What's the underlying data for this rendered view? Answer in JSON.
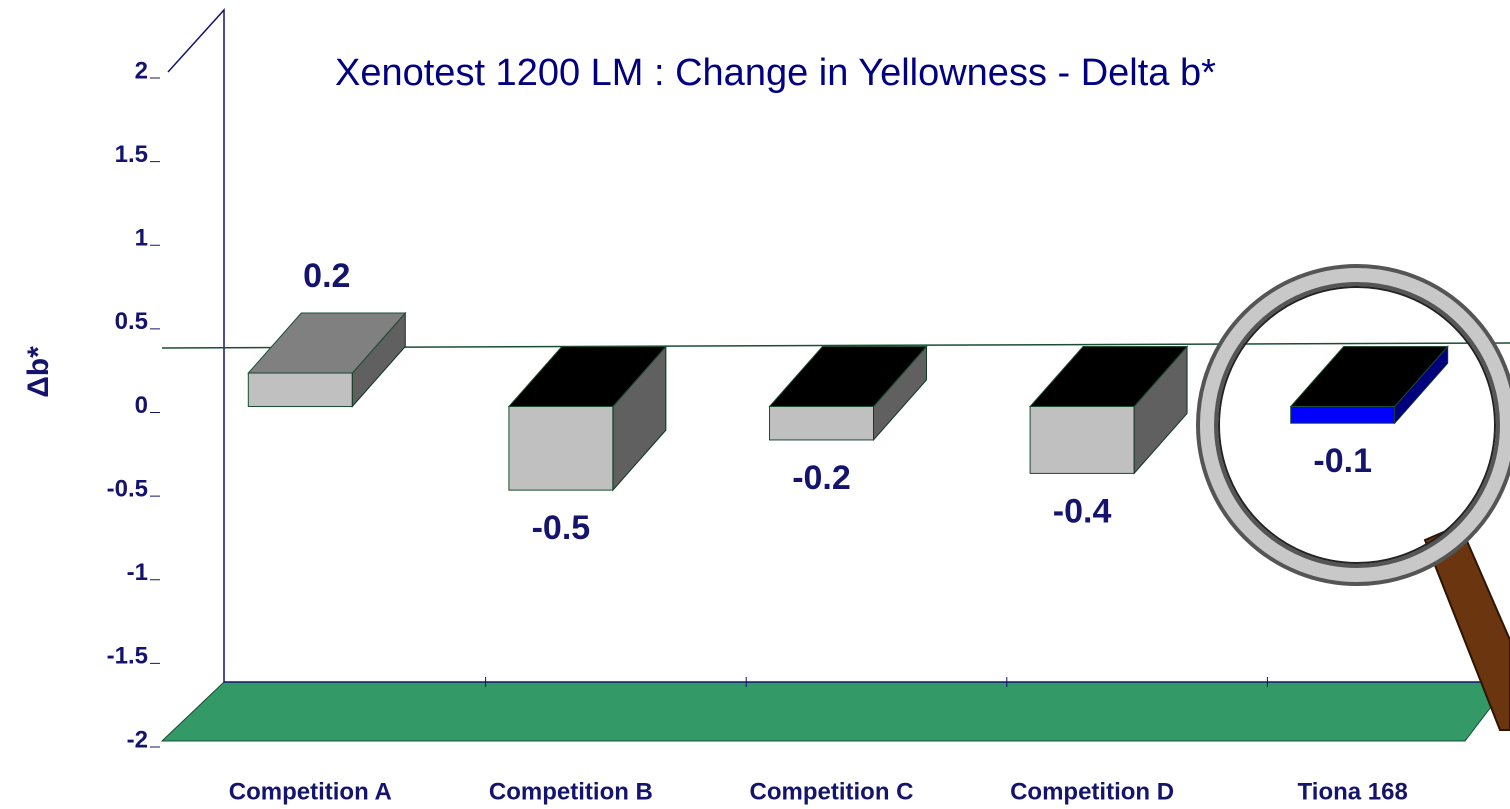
{
  "chart_data": {
    "type": "bar3d",
    "title": "Xenotest 1200 LM : Change in Yellowness - Delta b*",
    "ylabel": "Δb*",
    "categories": [
      "Competition A",
      "Competition B",
      "Competition C",
      "Competition D",
      "Tiona 168"
    ],
    "values": [
      0.2,
      -0.5,
      -0.2,
      -0.4,
      -0.1
    ],
    "colors": [
      "#c0c0c0",
      "#c0c0c0",
      "#c0c0c0",
      "#c0c0c0",
      "#0000ff"
    ],
    "ylim": [
      -2,
      2
    ],
    "yticks": [
      2,
      1.5,
      1,
      0.5,
      0,
      -0.5,
      -1,
      -1.5,
      -2
    ]
  }
}
